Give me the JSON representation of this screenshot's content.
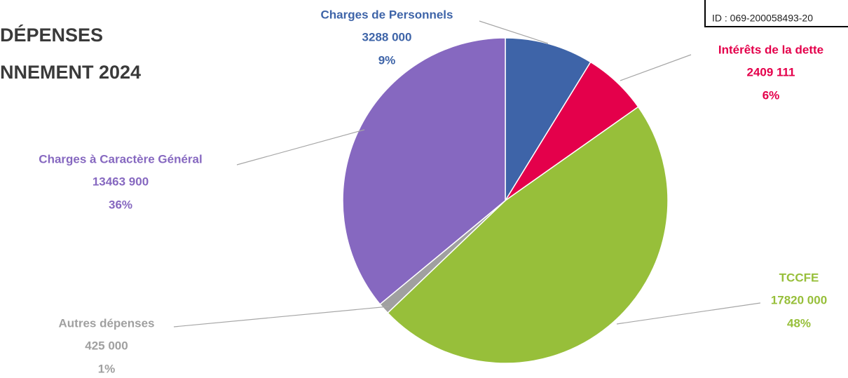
{
  "id_text": "ID : 069-200058493-20",
  "chart_data": {
    "type": "pie",
    "title": [
      "DÉPENSES",
      "NNEMENT 2024"
    ],
    "categories": [
      "Charges de Personnels",
      "Intérêts de la dette",
      "TCCFE",
      "Autres dépenses",
      "Charges à Caractère Général"
    ],
    "values": [
      3288000,
      2409111,
      17820000,
      425000,
      13463900
    ],
    "value_labels": [
      "3288 000",
      "2409 111",
      "17820 000",
      "425 000",
      "13463 900"
    ],
    "percentages": [
      9,
      6,
      48,
      1,
      36
    ],
    "percentage_labels": [
      "9%",
      "6%",
      "48%",
      "1%",
      "36%"
    ],
    "colors": [
      "#3e64a8",
      "#e4004b",
      "#97bf3a",
      "#a0a0a0",
      "#8668c0"
    ]
  }
}
